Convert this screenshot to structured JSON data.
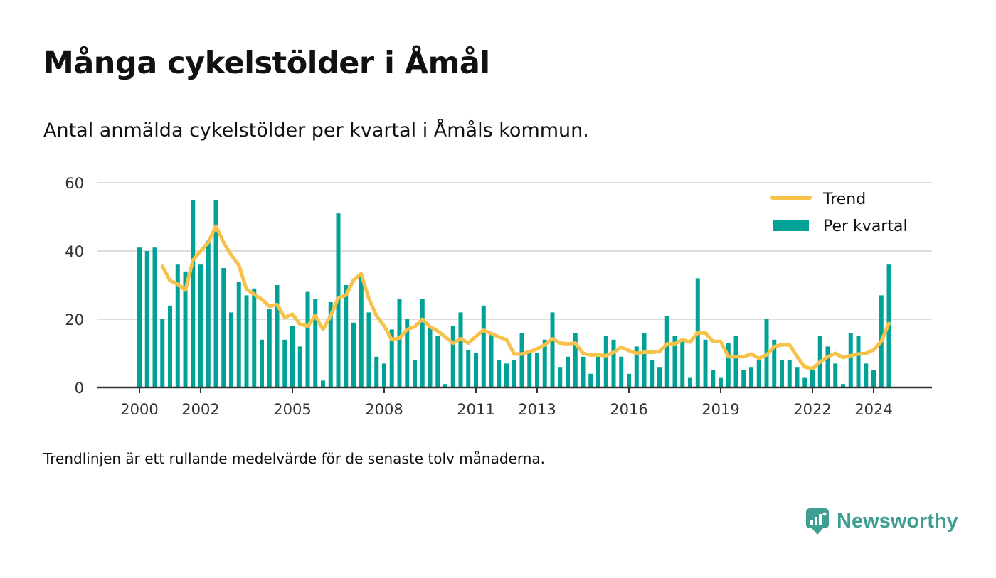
{
  "title": "Många cykelstölder i Åmål",
  "subtitle": "Antal anmälda cykelstölder per kvartal i Åmåls kommun.",
  "note": "Trendlinjen är ett rullande medelvärde för de senaste tolv månaderna.",
  "brand": "Newsworthy",
  "colors": {
    "bar": "#00a197",
    "trend": "#f7c24a",
    "brand": "#3e9e92",
    "grid": "#dddddd",
    "axis": "#333333"
  },
  "chart_data": {
    "type": "bar",
    "title": "",
    "xlabel": "",
    "ylabel": "",
    "ylim": [
      0,
      60
    ],
    "yticks": [
      0,
      20,
      40,
      60
    ],
    "xticks": [
      "2000",
      "2002",
      "2005",
      "2008",
      "2011",
      "2013",
      "2016",
      "2019",
      "2022",
      "2024"
    ],
    "x_start": "2000 Q1",
    "legend_position": "top-right",
    "grid": true,
    "series": [
      {
        "name": "Per kvartal",
        "type": "bar",
        "values": [
          41,
          40,
          41,
          20,
          24,
          36,
          34,
          55,
          36,
          43,
          55,
          35,
          22,
          31,
          27,
          29,
          14,
          23,
          30,
          14,
          18,
          12,
          28,
          26,
          2,
          25,
          51,
          30,
          19,
          33,
          22,
          9,
          7,
          17,
          26,
          20,
          8,
          26,
          18,
          15,
          1,
          18,
          22,
          11,
          10,
          24,
          16,
          8,
          7,
          8,
          16,
          10,
          10,
          14,
          22,
          6,
          9,
          16,
          9,
          4,
          9,
          15,
          14,
          9,
          4,
          12,
          16,
          8,
          6,
          21,
          15,
          14,
          3,
          32,
          14,
          5,
          3,
          13,
          15,
          5,
          6,
          8,
          20,
          14,
          8,
          8,
          6,
          3,
          5,
          15,
          12,
          7,
          1,
          16,
          15,
          7,
          5,
          27,
          36
        ]
      },
      {
        "name": "Trend",
        "type": "line",
        "start_index": 3,
        "values": [
          35.5,
          31.3,
          30.3,
          28.5,
          37.3,
          40.0,
          42.5,
          47.3,
          42.5,
          38.8,
          35.8,
          28.8,
          27.3,
          25.8,
          23.8,
          24.3,
          20.5,
          21.5,
          18.5,
          18.0,
          21.0,
          17.0,
          21.0,
          26.3,
          27.0,
          31.5,
          33.3,
          26.0,
          21.0,
          18.0,
          14.0,
          14.5,
          17.0,
          17.8,
          20.0,
          17.8,
          16.5,
          14.8,
          13.0,
          14.3,
          13.0,
          15.0,
          16.8,
          15.8,
          14.8,
          14.0,
          9.8,
          9.8,
          10.5,
          11.3,
          12.5,
          14.3,
          13.0,
          12.8,
          13.0,
          10.0,
          9.5,
          9.5,
          9.3,
          10.3,
          11.8,
          10.8,
          10.0,
          10.3,
          10.3,
          10.5,
          12.8,
          12.8,
          14.0,
          13.3,
          16.0,
          16.0,
          13.5,
          13.5,
          9.0,
          9.0,
          9.0,
          9.8,
          8.5,
          9.5,
          12.0,
          12.5,
          12.5,
          9.0,
          6.0,
          5.5,
          7.5,
          9.0,
          10.0,
          8.8,
          9.3,
          9.8,
          10.0,
          11.0,
          13.5,
          18.8
        ]
      }
    ]
  }
}
